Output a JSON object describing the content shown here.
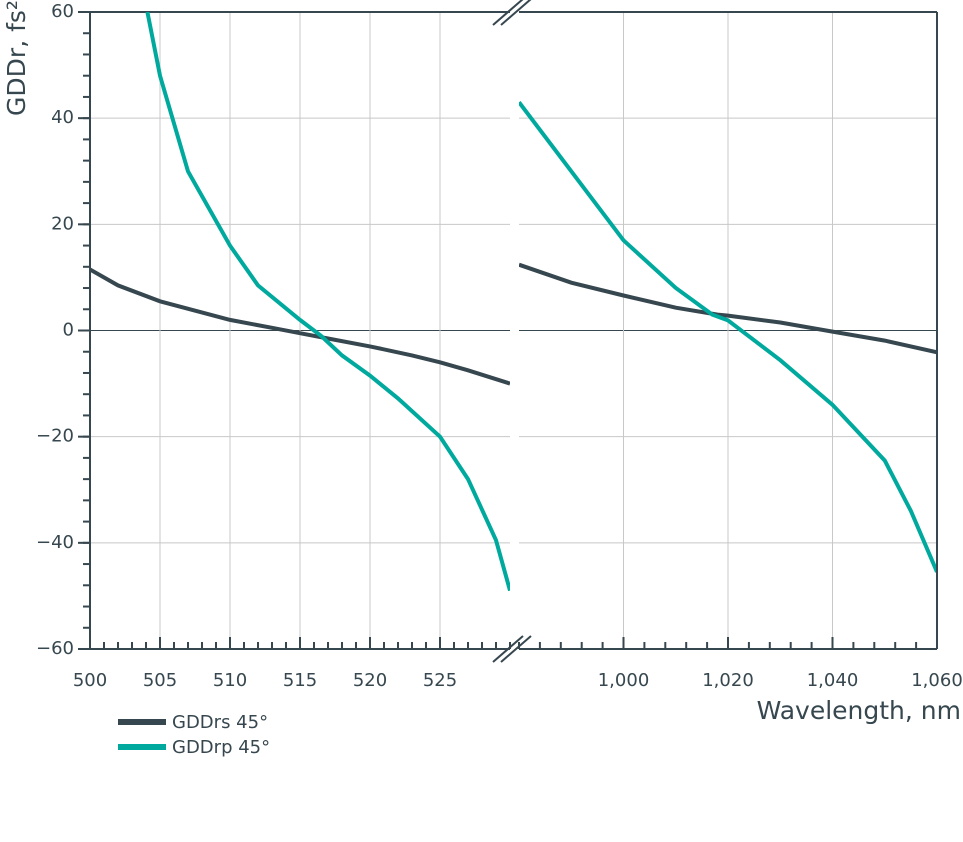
{
  "chart_data": {
    "type": "line",
    "ylabel": "GDDr, fs²",
    "xlabel": "Wavelength, nm",
    "ylim": [
      -60,
      60
    ],
    "yticks": [
      {
        "value": -60,
        "label": "−60"
      },
      {
        "value": -40,
        "label": "−40"
      },
      {
        "value": -20,
        "label": "−20"
      },
      0,
      20,
      40,
      60
    ],
    "y_minor_step": 4,
    "grid": true,
    "panels": [
      {
        "xlim": [
          500,
          530
        ],
        "xticks": [
          500,
          505,
          510,
          515,
          520,
          525
        ],
        "x_minor_step": 1
      },
      {
        "xlim": [
          980,
          1060
        ],
        "xticks": [
          {
            "value": 1000,
            "label": "1,000"
          },
          {
            "value": 1020,
            "label": "1,020"
          },
          {
            "value": 1040,
            "label": "1,040"
          },
          {
            "value": 1060,
            "label": "1,060"
          }
        ],
        "x_minor_step": 4
      }
    ],
    "series": [
      {
        "name": "GDDrs 45°",
        "color": "#37474f",
        "panels": [
          {
            "x": [
              500,
              502,
              505,
              510,
              513,
              515,
              517,
              520,
              523,
              525,
              527,
              530
            ],
            "values": [
              11.5,
              8.5,
              5.5,
              2,
              0.5,
              -0.5,
              -1.5,
              -3,
              -4.7,
              -6,
              -7.5,
              -10
            ]
          },
          {
            "x": [
              980,
              990,
              1000,
              1010,
              1018,
              1020,
              1030,
              1040,
              1050,
              1060
            ],
            "values": [
              12.4,
              9,
              6.6,
              4.3,
              3,
              2.8,
              1.5,
              -0.2,
              -1.9,
              -4.1
            ]
          }
        ]
      },
      {
        "name": "GDDrp 45°",
        "color": "#00a99d",
        "panels": [
          {
            "x": [
              504.1,
              505,
              507,
              510,
              512,
              515,
              516.5,
              518,
              520,
              522,
              525,
              527,
              529,
              530
            ],
            "values": [
              60,
              48,
              30,
              16,
              8.5,
              2,
              -1,
              -4.7,
              -8.5,
              -12.8,
              -20,
              -28,
              -39.5,
              -49
            ]
          },
          {
            "x": [
              980,
              990,
              1000,
              1010,
              1017,
              1020,
              1030,
              1040,
              1050,
              1055,
              1060
            ],
            "values": [
              43,
              30,
              17,
              8,
              3,
              1.9,
              -5.6,
              -14,
              -24.5,
              -34,
              -45.5
            ]
          }
        ]
      }
    ]
  }
}
